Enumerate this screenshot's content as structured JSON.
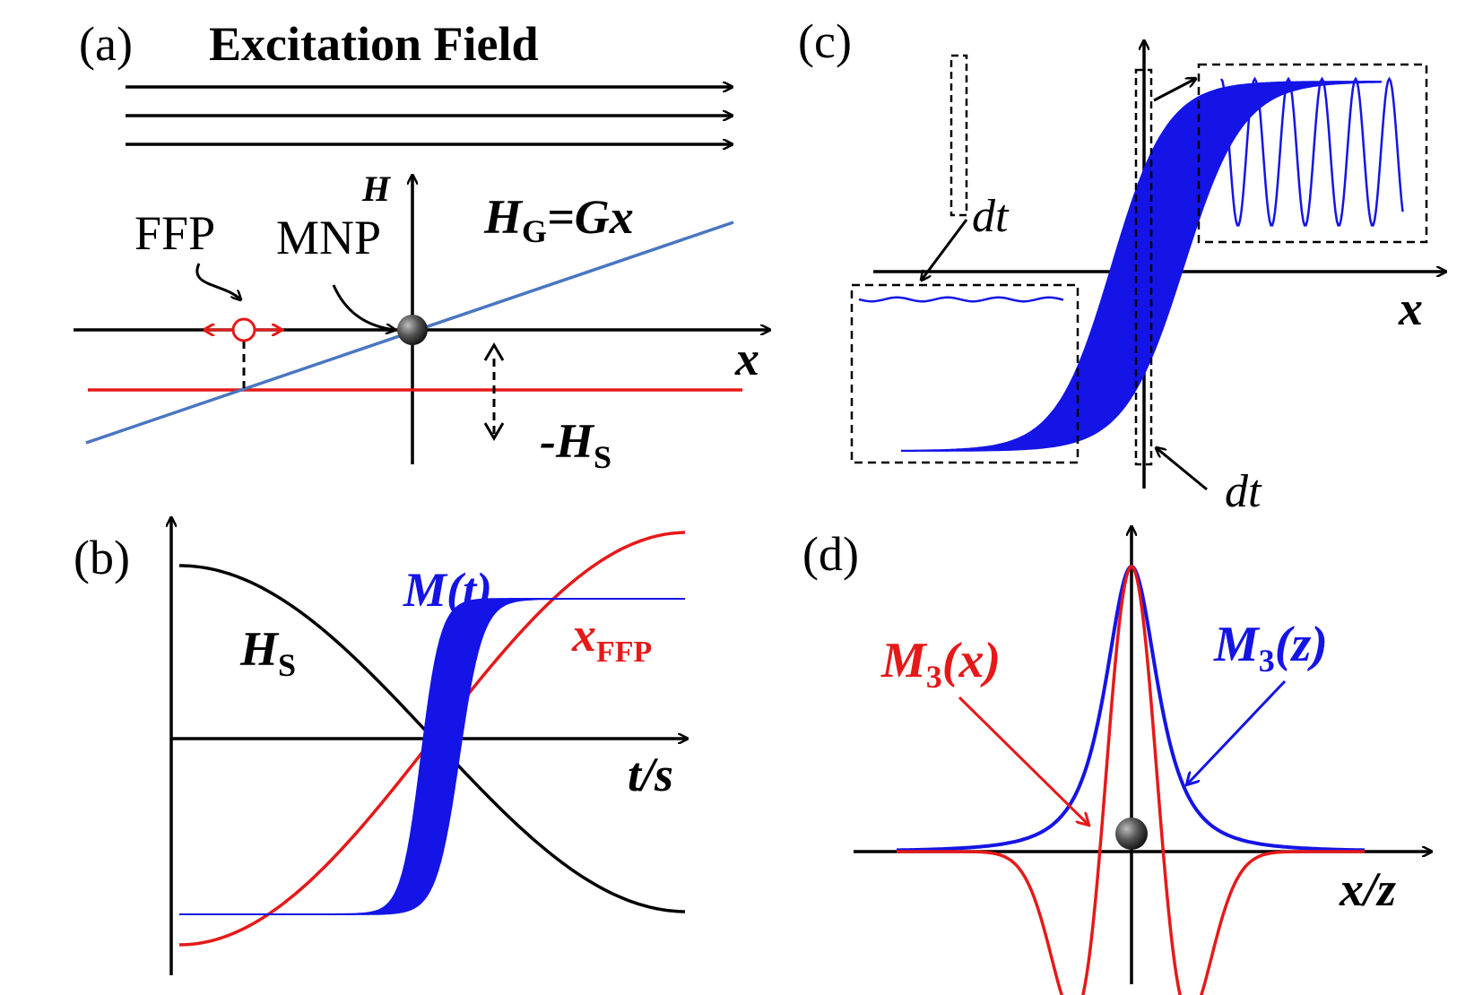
{
  "panels": {
    "a": {
      "label": "(a)",
      "title": "Excitation Field",
      "h_axis": "H",
      "x_axis": "x",
      "ffp": "FFP",
      "mnp": "MNP",
      "gradient_main": "H",
      "gradient_sub": "G",
      "gradient_rhs": "=Gx",
      "hs_main": "-H",
      "hs_sub": "S"
    },
    "b": {
      "label": "(b)",
      "m_label": "M(t)",
      "hs_main": "H",
      "hs_sub": "S",
      "xffp_main": "x",
      "xffp_sub": "FFP",
      "axis": "t/s"
    },
    "c": {
      "label": "(c)",
      "dt_top": "dt",
      "dt_bottom": "dt",
      "x_axis": "x"
    },
    "d": {
      "label": "(d)",
      "m3x": "M",
      "m3x_sub": "3",
      "m3x_arg": "(x)",
      "m3z": "M",
      "m3z_sub": "3",
      "m3z_arg": "(z)",
      "axis": "x/z"
    }
  },
  "colors": {
    "blue_line": "#4a76c0",
    "red": "#e61919",
    "blue": "#1414e6",
    "black": "#000000"
  }
}
